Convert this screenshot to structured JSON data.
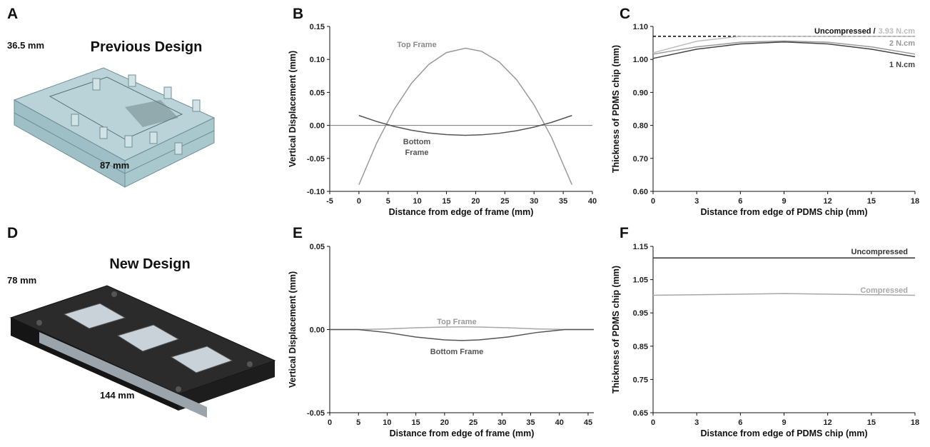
{
  "figures": [
    {
      "panel_label": "A",
      "title": "Previous Design",
      "dims": [
        "36.5 mm",
        "87 mm"
      ]
    },
    {
      "panel_label": "D",
      "title": "New Design",
      "dims": [
        "78 mm",
        "144 mm"
      ]
    }
  ],
  "chart_data": [
    {
      "type": "line",
      "panel_label": "B",
      "xlabel": "Distance from edge of frame (mm)",
      "ylabel": "Vertical Displacement (mm)",
      "xlim": [
        -5,
        40
      ],
      "xticks": [
        -5,
        0,
        5,
        10,
        15,
        20,
        25,
        30,
        35,
        40
      ],
      "ylim": [
        -0.1,
        0.15
      ],
      "yticks": [
        0.15,
        {
          "value": 0.1,
          "label": "0.10"
        },
        0.05,
        {
          "value": 0,
          "label": "0.00"
        },
        -0.05,
        {
          "value": -0.1,
          "label": "-0.10"
        }
      ],
      "zero_line": true,
      "x": [
        0,
        3,
        6,
        9,
        12,
        15,
        18.25,
        21,
        24,
        27,
        30,
        33,
        36.5
      ],
      "series": [
        {
          "name": "Top Frame",
          "color": "#9a9a9a",
          "values": [
            -0.09,
            -0.0275,
            0.0237,
            0.0638,
            0.0927,
            0.1104,
            0.117,
            0.1123,
            0.0964,
            0.0694,
            0.0312,
            -0.0182,
            -0.09
          ]
        },
        {
          "name": "Bottom Frame",
          "color": "#555555",
          "values": [
            0.015,
            0.006,
            -0.0015,
            -0.0073,
            -0.0115,
            -0.014,
            -0.015,
            -0.0143,
            -0.012,
            -0.0081,
            -0.0026,
            0.0046,
            0.015
          ]
        }
      ],
      "annotations": [
        "Top Frame",
        "Bottom",
        "Frame"
      ]
    },
    {
      "type": "line",
      "panel_label": "C",
      "xlabel": "Distance from edge of PDMS chip (mm)",
      "ylabel": "Thickness of PDMS chip (mm)",
      "xlim": [
        0,
        18
      ],
      "xticks": [
        0,
        3,
        6,
        9,
        12,
        15,
        18
      ],
      "ylim": [
        0.6,
        1.1
      ],
      "yticks": [
        {
          "value": 0.6,
          "label": "0.60"
        },
        {
          "value": 0.7,
          "label": "0.70"
        },
        {
          "value": 0.8,
          "label": "0.80"
        },
        {
          "value": 0.9,
          "label": "0.90"
        },
        {
          "value": 1.0,
          "label": "1.00"
        },
        {
          "value": 1.1,
          "label": "1.10"
        }
      ],
      "x": [
        0,
        3,
        6,
        9,
        12,
        15,
        18
      ],
      "series": [
        {
          "name": "Uncompressed /",
          "color": "#000000",
          "dashed": true,
          "values": [
            1.07,
            1.07,
            1.07,
            1.07,
            1.07,
            1.07,
            1.07
          ]
        },
        {
          "name": "3.93 N.cm",
          "color": "#bdbdbd",
          "values": [
            1.02,
            1.055,
            1.07,
            1.07,
            1.07,
            1.07,
            1.07
          ]
        },
        {
          "name": "2 N.cm",
          "color": "#9a9a9a",
          "values": [
            1.016,
            1.038,
            1.052,
            1.056,
            1.052,
            1.038,
            1.016
          ]
        },
        {
          "name": "1 N.cm",
          "color": "#444444",
          "values": [
            1.003,
            1.031,
            1.047,
            1.053,
            1.047,
            1.031,
            1.008
          ]
        }
      ]
    },
    {
      "type": "line",
      "panel_label": "E",
      "xlabel": "Distance from edge of frame (mm)",
      "ylabel": "Vertical Displacement (mm)",
      "xlim": [
        0,
        46
      ],
      "xticks": [
        0,
        5,
        10,
        15,
        20,
        25,
        30,
        35,
        40,
        45
      ],
      "ylim": [
        -0.05,
        0.05
      ],
      "yticks": [
        0.05,
        {
          "value": 0,
          "label": "0.00"
        },
        -0.05
      ],
      "x": [
        0,
        5,
        10,
        15,
        20,
        23,
        26,
        31,
        36,
        41,
        46
      ],
      "series": [
        {
          "name": "Top Frame",
          "color": "#a8a8a8",
          "values": [
            0,
            0,
            0.0004,
            0.0011,
            0.0015,
            0.0016,
            0.0015,
            0.0011,
            0.0004,
            0,
            0
          ]
        },
        {
          "name": "Bottom Frame",
          "color": "#555555",
          "values": [
            0,
            0,
            -0.0018,
            -0.0045,
            -0.0062,
            -0.0066,
            -0.0062,
            -0.0045,
            -0.0018,
            0,
            0
          ]
        }
      ],
      "annotations": [
        "Top Frame",
        "Bottom Frame"
      ]
    },
    {
      "type": "line",
      "panel_label": "F",
      "xlabel": "Distance from edge of PDMS chip (mm)",
      "ylabel": "Thickness of PDMS chip (mm)",
      "xlim": [
        0,
        18
      ],
      "xticks": [
        0,
        3,
        6,
        9,
        12,
        15,
        18
      ],
      "ylim": [
        0.65,
        1.15
      ],
      "yticks": [
        0.65,
        0.75,
        0.85,
        0.95,
        1.05,
        1.15
      ],
      "x": [
        0,
        9,
        18
      ],
      "series": [
        {
          "name": "Uncompressed",
          "color": "#333333",
          "values": [
            1.115,
            1.115,
            1.115
          ]
        },
        {
          "name": "Compressed",
          "color": "#a8a8a8",
          "values": [
            1.003,
            1.008,
            1.003
          ]
        }
      ]
    }
  ]
}
